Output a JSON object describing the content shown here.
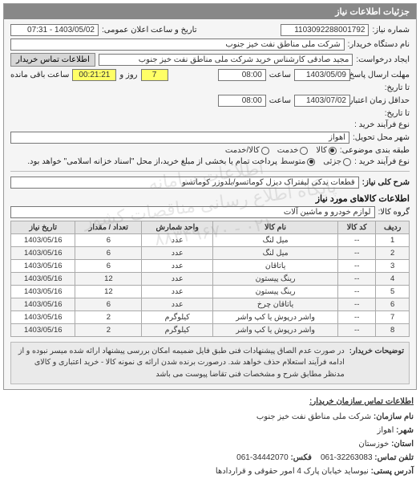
{
  "panel": {
    "title": "جزئیات اطلاعات نیاز"
  },
  "watermark": {
    "line1": "اطلاعات سامانه",
    "line2": "پایگاه اطلاع رسانی مناقصات کشور",
    "line3": "۰۲۱ - ۸۸۳۴۹۶۷۰"
  },
  "header": {
    "need_no_label": "شماره نیاز:",
    "need_no": "1103092288001792",
    "announce_label": "تاریخ و ساعت اعلان عمومی:",
    "announce_value": "1403/05/02 - 07:31",
    "buyer_org_label": "نام دستگاه خریدار:",
    "buyer_org": "شرکت ملی مناطق نفت خیز جنوب",
    "creator_label": "ایجاد درخواست:",
    "creator": "مجید صادقی  کارشناس خرید  شرکت ملی مناطق نفت خیز جنوب",
    "contact_btn": "اطلاعات تماس خریدار",
    "deadline_send_label": "مهلت ارسال پاسخ:",
    "deadline_send_date": "1403/05/09",
    "time_label": "ساعت",
    "deadline_send_time": "08:00",
    "days_label": "روز و",
    "days_value": "7",
    "remaining_label": "ساعت باقی مانده",
    "remaining_value": "00:21:21",
    "until_label": "تا تاریخ:",
    "price_valid_label": "حداقل زمان اعتبار قیمت:",
    "price_valid_date": "1403/07/02",
    "price_valid_time": "08:00",
    "until2_label": "تا تاریخ:",
    "buy_process_label": "نوع فرآیند خرید :",
    "delivery_city_label": "شهر محل تحویل:",
    "delivery_city": "اهواز",
    "subject_cat_label": "طبقه بندی موضوعی:",
    "radios": {
      "kala": "کالا",
      "khadmat": "خدمت",
      "kala_khadmat": "کالا/خدمت",
      "selected": "kala"
    },
    "process_type_label": "نوع فرآیند خرید :",
    "process_radios": {
      "jozi": "جزئی",
      "motavaset": "متوسط",
      "selected": "motavaset"
    },
    "process_note": "پرداخت تمام یا بخشی از مبلغ خرید،از محل \"اسناد خزانه اسلامی\" خواهد بود."
  },
  "need_desc": {
    "label": "شرح کلی نیاز:",
    "value": "قطعات یدکی لیفتراک دیزل کوماتسو/بلدوزر کوماتسو"
  },
  "items_section": {
    "title": "اطلاعات کالاهای مورد نیاز",
    "group_label": "گروه کالا:",
    "group_value": "لوازم خودرو و ماشین آلات",
    "columns": [
      "ردیف",
      "کد کالا",
      "نام کالا",
      "واحد شمارش",
      "تعداد / مقدار",
      "تاریخ نیاز"
    ],
    "rows": [
      [
        "1",
        "--",
        "میل لنگ",
        "عدد",
        "6",
        "1403/05/16"
      ],
      [
        "2",
        "--",
        "میل لنگ",
        "عدد",
        "6",
        "1403/05/16"
      ],
      [
        "3",
        "--",
        "یاتاقان",
        "عدد",
        "6",
        "1403/05/16"
      ],
      [
        "4",
        "--",
        "رینگ پیستون",
        "عدد",
        "12",
        "1403/05/16"
      ],
      [
        "5",
        "--",
        "رینگ پیستون",
        "عدد",
        "12",
        "1403/05/16"
      ],
      [
        "6",
        "--",
        "یاتاقان چرخ",
        "عدد",
        "6",
        "1403/05/16"
      ],
      [
        "7",
        "--",
        "واشر درپوش یا کپ واشر",
        "کیلوگرم",
        "2",
        "1403/05/16"
      ],
      [
        "8",
        "--",
        "واشر درپوش یا کپ واشر",
        "کیلوگرم",
        "2",
        "1403/05/16"
      ]
    ]
  },
  "note": {
    "label": "توضیحات خریدار:",
    "text": "در صورت عدم الصاق پیشنهادات فنی طبق فایل ضمیمه امکان بررسی پیشنهاد ارائه شده میسر نبوده و از ادامه فرآیند استعلام حذف خواهد شد. درصورت برنده شدن ارائه ی نمونه کالا - خرید اعتباری و کالای مدنظر مطابق شرح و مشخصات فنی تقاضا پیوست می باشد"
  },
  "footer": {
    "title": "اطلاعات تماس سازمان خریدار:",
    "org_label": "نام سازمان:",
    "org": "شرکت ملی مناطق نفت خیز جنوب",
    "city_label": "شهر:",
    "city": "اهواز",
    "province_label": "استان:",
    "province": "خوزستان",
    "phone_label": "تلفن تماس:",
    "phone": "32263083-061",
    "fax_label": "فکس:",
    "fax": "34442070-061",
    "address_label": "آدرس پستی:",
    "address": "نیوساید خیابان پارک 4 امور حقوقی و قراردادها"
  },
  "colors": {
    "header_bg": "#888888",
    "panel_bg": "#f5f5f5",
    "field_bg": "#ffffff",
    "highlight_bg": "#ffff66",
    "border": "#999999",
    "th_bg": "#e4e4e4"
  }
}
